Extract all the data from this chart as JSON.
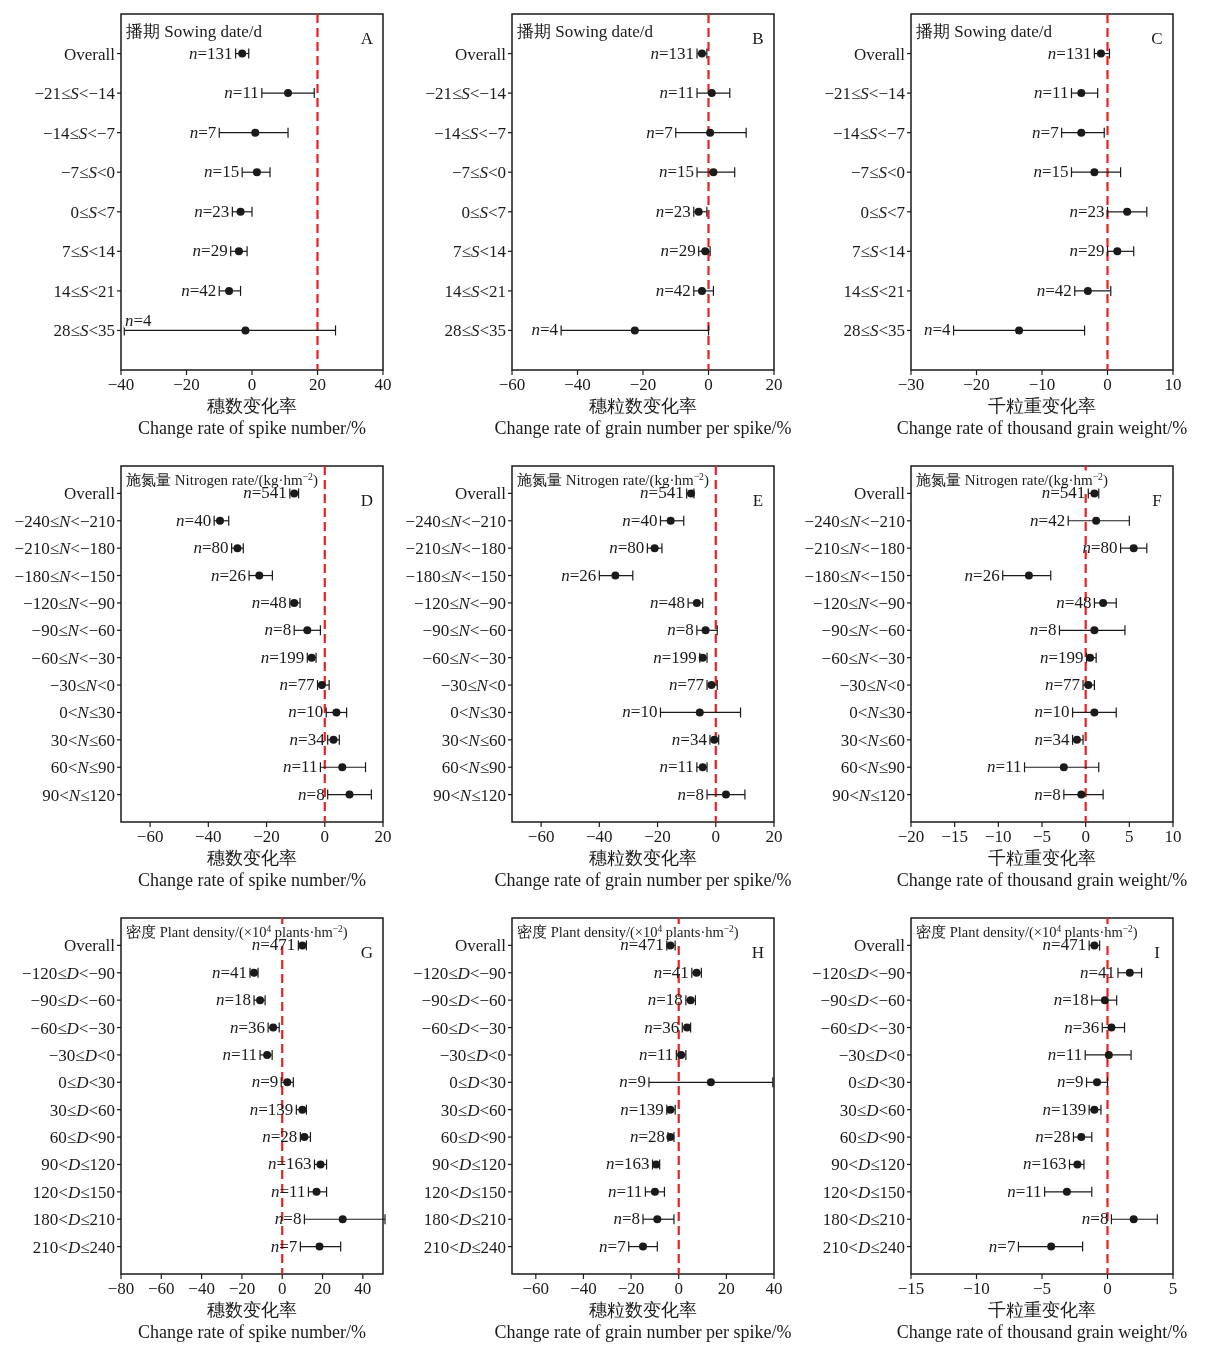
{
  "chart_data": [
    {
      "type": "scatter",
      "orientation": "horizontal",
      "marker": "circle",
      "color": "#1a1a1a",
      "title": "播期 Sowing date/d",
      "xlabel": "穗数变化率\nChange rate of spike number/%",
      "xlim": [
        -40,
        40
      ],
      "xticks": [
        -40,
        -20,
        0,
        20,
        40
      ],
      "ref_lines": [
        {
          "axis": "x",
          "value": 20,
          "color": "#e8201f",
          "line_style": "dashed"
        }
      ],
      "categories": [
        "Overall",
        "−21≤*S*<−14",
        "−14≤*S*<−7",
        "−7≤*S*<0",
        "0≤*S*<7",
        "7≤*S*<14",
        "14≤*S*<21",
        "28≤*S*<35"
      ],
      "values": [
        -3,
        11,
        1,
        1.5,
        -3.5,
        -4,
        -7,
        -2
      ],
      "errors": [
        [
          -5,
          -1
        ],
        [
          3,
          19
        ],
        [
          -10,
          11
        ],
        [
          -3,
          5.5
        ],
        [
          -6,
          0
        ],
        [
          -6.5,
          -1.5
        ],
        [
          -10,
          -3.5
        ],
        [
          -39,
          25.5
        ]
      ],
      "annotations": [
        "A",
        {
          "text": "*n*=131",
          "x": -5,
          "y": "Overall"
        },
        {
          "text": "*n*=11",
          "x": 3,
          "y": "−21≤*S*<−14"
        },
        {
          "text": "*n*=7",
          "x": -10,
          "y": "−14≤*S*<−7"
        },
        {
          "text": "*n*=15",
          "x": -3,
          "y": "−7≤*S*<0"
        },
        {
          "text": "*n*=23",
          "x": -6,
          "y": "0≤*S*<7"
        },
        {
          "text": "*n*=29",
          "x": -6.5,
          "y": "7≤*S*<14"
        },
        {
          "text": "*n*=42",
          "x": -10,
          "y": "14≤*S*<21"
        },
        {
          "text": "*n*=4",
          "x": -39,
          "y": "28≤*S*<35"
        }
      ]
    },
    {
      "type": "scatter",
      "orientation": "horizontal",
      "marker": "circle",
      "color": "#1a1a1a",
      "title": "播期 Sowing date/d",
      "xlabel": "穗粒数变化率\nChange rate of grain number per spike/%",
      "xlim": [
        -60,
        20
      ],
      "xticks": [
        -60,
        -40,
        -20,
        0,
        20
      ],
      "ref_lines": [
        {
          "axis": "x",
          "value": 0,
          "color": "#e8201f",
          "line_style": "dashed"
        }
      ],
      "categories": [
        "Overall",
        "−21≤*S*<−14",
        "−14≤*S*<−7",
        "−7≤*S*<0",
        "0≤*S*<7",
        "7≤*S*<14",
        "14≤*S*<21",
        "28≤*S*<35"
      ],
      "values": [
        -2,
        1,
        0.5,
        1.5,
        -3,
        -1,
        -2,
        -22.5
      ],
      "errors": [
        [
          -3.5,
          -0.5
        ],
        [
          -3.5,
          6.5
        ],
        [
          -10,
          11.5
        ],
        [
          -3.5,
          8
        ],
        [
          -4.5,
          -0.5
        ],
        [
          -3,
          0.5
        ],
        [
          -4.5,
          1.5
        ],
        [
          -45,
          0
        ]
      ],
      "annotations": [
        "B",
        {
          "text": "*n*=131",
          "x": -3.5,
          "y": "Overall"
        },
        {
          "text": "*n*=11",
          "x": -3.5,
          "y": "−21≤*S*<−14"
        },
        {
          "text": "*n*=7",
          "x": -10,
          "y": "−14≤*S*<−7"
        },
        {
          "text": "*n*=15",
          "x": -3.5,
          "y": "−7≤*S*<0"
        },
        {
          "text": "*n*=23",
          "x": -4.5,
          "y": "0≤*S*<7"
        },
        {
          "text": "*n*=29",
          "x": -3,
          "y": "7≤*S*<14"
        },
        {
          "text": "*n*=42",
          "x": -4.5,
          "y": "14≤*S*<21"
        },
        {
          "text": "*n*=4",
          "x": -45,
          "y": "28≤*S*<35"
        }
      ]
    },
    {
      "type": "scatter",
      "orientation": "horizontal",
      "marker": "circle",
      "color": "#1a1a1a",
      "title": "播期 Sowing date/d",
      "xlabel": "千粒重变化率\nChange rate of thousand grain weight/%",
      "xlim": [
        -30,
        10
      ],
      "xticks": [
        -30,
        -20,
        -10,
        0,
        10
      ],
      "ref_lines": [
        {
          "axis": "x",
          "value": 0,
          "color": "#e8201f",
          "line_style": "dashed"
        }
      ],
      "categories": [
        "Overall",
        "−21≤*S*<−14",
        "−14≤*S*<−7",
        "−7≤*S*<0",
        "0≤*S*<7",
        "7≤*S*<14",
        "14≤*S*<21",
        "28≤*S*<35"
      ],
      "values": [
        -1,
        -4,
        -4,
        -2,
        3,
        1.5,
        -3,
        -13.5
      ],
      "errors": [
        [
          -2,
          0.3
        ],
        [
          -5.5,
          -1.5
        ],
        [
          -7,
          -0.5
        ],
        [
          -5.5,
          2
        ],
        [
          0,
          6
        ],
        [
          0,
          4
        ],
        [
          -5,
          0.5
        ],
        [
          -23.5,
          -3.5
        ]
      ],
      "annotations": [
        "C",
        {
          "text": "*n*=131",
          "x": -2,
          "y": "Overall"
        },
        {
          "text": "*n*=11",
          "x": -5.5,
          "y": "−21≤*S*<−14"
        },
        {
          "text": "*n*=7",
          "x": -7,
          "y": "−14≤*S*<−7"
        },
        {
          "text": "*n*=15",
          "x": -5.5,
          "y": "−7≤*S*<0"
        },
        {
          "text": "*n*=23",
          "x": 0,
          "y": "0≤*S*<7"
        },
        {
          "text": "*n*=29",
          "x": 0,
          "y": "7≤*S*<14"
        },
        {
          "text": "*n*=42",
          "x": -5,
          "y": "14≤*S*<21"
        },
        {
          "text": "*n*=4",
          "x": -23.5,
          "y": "28≤*S*<35"
        }
      ]
    },
    {
      "type": "scatter",
      "orientation": "horizontal",
      "marker": "circle",
      "color": "#1a1a1a",
      "title": "施氮量 Nitrogen rate/(kg·hm$^{−2}$)",
      "xlabel": "穗数变化率\nChange rate of spike number/%",
      "xlim": [
        -70,
        20
      ],
      "xticks": [
        -60,
        -40,
        -20,
        0,
        20
      ],
      "ref_lines": [
        {
          "axis": "x",
          "value": 0,
          "color": "#e8201f",
          "line_style": "dashed"
        }
      ],
      "categories": [
        "Overall",
        "−240≤*N*<−210",
        "−210≤*N*<−180",
        "−180≤*N*<−150",
        "−120≤*N*<−90",
        "−90≤*N*<−60",
        "−60≤*N*<−30",
        "−30≤*N*<0",
        "0<*N*≤30",
        "30<*N*≤60",
        "60<*N*≤90",
        "90<*N*≤120"
      ],
      "values": [
        -10.5,
        -36,
        -30,
        -22.5,
        -10.5,
        -6,
        -4.5,
        -1,
        4,
        3,
        6,
        8.5
      ],
      "errors": [
        [
          -12,
          -9
        ],
        [
          -38,
          -33
        ],
        [
          -32,
          -28
        ],
        [
          -26,
          -18
        ],
        [
          -12,
          -8.5
        ],
        [
          -10.5,
          -1.5
        ],
        [
          -6,
          -3
        ],
        [
          -2.5,
          1.5
        ],
        [
          0.5,
          7.5
        ],
        [
          1,
          5
        ],
        [
          -1.5,
          14
        ],
        [
          1,
          16
        ]
      ],
      "annotations": [
        "D",
        {
          "text": "*n*=541",
          "x": -12,
          "y": "Overall"
        },
        {
          "text": "*n*=40",
          "x": -38,
          "y": "−240≤*N*<−210"
        },
        {
          "text": "*n*=80",
          "x": -32,
          "y": "−210≤*N*<−180"
        },
        {
          "text": "*n*=26",
          "x": -26,
          "y": "−180≤*N*<−150"
        },
        {
          "text": "*n*=48",
          "x": -12,
          "y": "−120≤*N*<−90"
        },
        {
          "text": "*n*=8",
          "x": -10.5,
          "y": "−90≤*N*<−60"
        },
        {
          "text": "*n*=199",
          "x": -6,
          "y": "−60≤*N*<−30"
        },
        {
          "text": "*n*=77",
          "x": -2.5,
          "y": "−30≤*N*<0"
        },
        {
          "text": "*n*=10",
          "x": 0.5,
          "y": "0<*N*≤30"
        },
        {
          "text": "*n*=34",
          "x": 1,
          "y": "30<*N*≤60"
        },
        {
          "text": "*n*=11",
          "x": -1.5,
          "y": "60<*N*≤90"
        },
        {
          "text": "*n*=8",
          "x": 1,
          "y": "90<*N*≤120"
        }
      ]
    },
    {
      "type": "scatter",
      "orientation": "horizontal",
      "marker": "circle",
      "color": "#1a1a1a",
      "title": "施氮量 Nitrogen rate/(kg·hm$^{−2}$)",
      "xlabel": "穗粒数变化率\nChange rate of grain number per spike/%",
      "xlim": [
        -70,
        20
      ],
      "xticks": [
        -60,
        -40,
        -20,
        0,
        20
      ],
      "ref_lines": [
        {
          "axis": "x",
          "value": 0,
          "color": "#e8201f",
          "line_style": "dashed"
        }
      ],
      "categories": [
        "Overall",
        "−240≤*N*<−210",
        "−210≤*N*<−180",
        "−180≤*N*<−150",
        "−120≤*N*<−90",
        "−90≤*N*<−60",
        "−60≤*N*<−30",
        "−30≤*N*<0",
        "0<*N*≤30",
        "30<*N*≤60",
        "60<*N*≤90",
        "90<*N*≤120"
      ],
      "values": [
        -8.5,
        -15.5,
        -21,
        -34.5,
        -6.5,
        -3.5,
        -4.5,
        -1.5,
        -5.5,
        -0.5,
        -4.5,
        3.5
      ],
      "errors": [
        [
          -10,
          -7.5
        ],
        [
          -19,
          -11
        ],
        [
          -23.5,
          -18.5
        ],
        [
          -40,
          -28.5
        ],
        [
          -9.5,
          -4.5
        ],
        [
          -6.5,
          0.5
        ],
        [
          -5.5,
          -3
        ],
        [
          -3,
          0.5
        ],
        [
          -19,
          8.5
        ],
        [
          -2,
          1
        ],
        [
          -6.5,
          -3
        ],
        [
          -3,
          10
        ]
      ],
      "annotations": [
        "E",
        {
          "text": "*n*=541",
          "x": -10,
          "y": "Overall"
        },
        {
          "text": "*n*=40",
          "x": -19,
          "y": "−240≤*N*<−210"
        },
        {
          "text": "*n*=80",
          "x": -23.5,
          "y": "−210≤*N*<−180"
        },
        {
          "text": "*n*=26",
          "x": -40,
          "y": "−180≤*N*<−150"
        },
        {
          "text": "*n*=48",
          "x": -9.5,
          "y": "−120≤*N*<−90"
        },
        {
          "text": "*n*=8",
          "x": -6.5,
          "y": "−90≤*N*<−60"
        },
        {
          "text": "*n*=199",
          "x": -5.5,
          "y": "−60≤*N*<−30"
        },
        {
          "text": "*n*=77",
          "x": -3,
          "y": "−30≤*N*<0"
        },
        {
          "text": "*n*=10",
          "x": -19,
          "y": "0<*N*≤30"
        },
        {
          "text": "*n*=34",
          "x": -2,
          "y": "30<*N*≤60"
        },
        {
          "text": "*n*=11",
          "x": -6.5,
          "y": "60<*N*≤90"
        },
        {
          "text": "*n*=8",
          "x": -3,
          "y": "90<*N*≤120"
        }
      ]
    },
    {
      "type": "scatter",
      "orientation": "horizontal",
      "marker": "circle",
      "color": "#1a1a1a",
      "title": "施氮量 Nitrogen rate/(kg·hm$^{−2}$)",
      "xlabel": "千粒重变化率\nChange rate of thousand grain weight/%",
      "xlim": [
        -20,
        10
      ],
      "xticks": [
        -20,
        -15,
        -10,
        -5,
        0,
        5,
        10
      ],
      "ref_lines": [
        {
          "axis": "x",
          "value": 0,
          "color": "#e8201f",
          "line_style": "dashed"
        }
      ],
      "categories": [
        "Overall",
        "−240≤*N*<−210",
        "−210≤*N*<−180",
        "−180≤*N*<−150",
        "−120≤*N*<−90",
        "−90≤*N*<−60",
        "−60≤*N*<−30",
        "−30≤*N*<0",
        "0<*N*≤30",
        "30<*N*≤60",
        "60<*N*≤90",
        "90<*N*≤120"
      ],
      "values": [
        1,
        1.2,
        5.5,
        -6.5,
        2,
        1,
        0.5,
        0.3,
        1,
        -1,
        -2.5,
        -0.5
      ],
      "errors": [
        [
          0.3,
          1.5
        ],
        [
          -2,
          5
        ],
        [
          4,
          7
        ],
        [
          -9.5,
          -4
        ],
        [
          1,
          3.5
        ],
        [
          -3,
          4.5
        ],
        [
          0.1,
          1.2
        ],
        [
          -0.3,
          1
        ],
        [
          -1.5,
          3.5
        ],
        [
          -1.5,
          -0.3
        ],
        [
          -7,
          1.5
        ],
        [
          -2.5,
          2
        ]
      ],
      "annotations": [
        "F",
        {
          "text": "*n*=541",
          "x": 0.3,
          "y": "Overall"
        },
        {
          "text": "*n*=42",
          "x": -2,
          "y": "−240≤*N*<−210"
        },
        {
          "text": "*n*=80",
          "x": 4,
          "y": "−210≤*N*<−180"
        },
        {
          "text": "*n*=26",
          "x": -9.5,
          "y": "−180≤*N*<−150"
        },
        {
          "text": "*n*=48",
          "x": 1,
          "y": "−120≤*N*<−90"
        },
        {
          "text": "*n*=8",
          "x": -3,
          "y": "−90≤*N*<−60"
        },
        {
          "text": "*n*=199",
          "x": 0.1,
          "y": "−60≤*N*<−30"
        },
        {
          "text": "*n*=77",
          "x": -0.3,
          "y": "−30≤*N*<0"
        },
        {
          "text": "*n*=10",
          "x": -1.5,
          "y": "0<*N*≤30"
        },
        {
          "text": "*n*=34",
          "x": -1.5,
          "y": "30<*N*≤60"
        },
        {
          "text": "*n*=11",
          "x": -7,
          "y": "60<*N*≤90"
        },
        {
          "text": "*n*=8",
          "x": -2.5,
          "y": "90<*N*≤120"
        }
      ]
    },
    {
      "type": "scatter",
      "orientation": "horizontal",
      "marker": "circle",
      "color": "#1a1a1a",
      "title": "密度 Plant density/(×10$^{4}$ plants·hm$^{−2}$)",
      "xlabel": "穗数变化率\nChange rate of spike number/%",
      "xlim": [
        -80,
        50
      ],
      "xticks": [
        -80,
        -60,
        -40,
        -20,
        0,
        20,
        40
      ],
      "ref_lines": [
        {
          "axis": "x",
          "value": 0,
          "color": "#e8201f",
          "line_style": "dashed"
        }
      ],
      "categories": [
        "Overall",
        "−120≤*D*<−90",
        "−90≤*D*<−60",
        "−60≤*D*<−30",
        "−30≤*D*<0",
        "0≤*D*<30",
        "30≤*D*<60",
        "60≤*D*<90",
        "90<*D*≤120",
        "120<*D*≤150",
        "180<*D*≤210",
        "210<*D*≤240"
      ],
      "values": [
        10,
        -14,
        -11,
        -4.5,
        -7.5,
        2.5,
        10,
        11,
        19,
        17,
        30,
        18.5
      ],
      "errors": [
        [
          8,
          12
        ],
        [
          -16,
          -12
        ],
        [
          -14,
          -8.5
        ],
        [
          -7,
          -1.5
        ],
        [
          -11,
          -5
        ],
        [
          -0.5,
          5.5
        ],
        [
          7,
          12
        ],
        [
          9,
          14
        ],
        [
          16,
          22
        ],
        [
          13,
          22
        ],
        [
          11,
          51
        ],
        [
          9,
          29
        ]
      ],
      "annotations": [
        "G",
        {
          "text": "*n*=471",
          "x": 8,
          "y": "Overall"
        },
        {
          "text": "*n*=41",
          "x": -16,
          "y": "−120≤*D*<−90"
        },
        {
          "text": "*n*=18",
          "x": -14,
          "y": "−90≤*D*<−60"
        },
        {
          "text": "*n*=36",
          "x": -7,
          "y": "−60≤*D*<−30"
        },
        {
          "text": "*n*=11",
          "x": -11,
          "y": "−30≤*D*<0"
        },
        {
          "text": "*n*=9",
          "x": -0.5,
          "y": "0≤*D*<30"
        },
        {
          "text": "*n*=139",
          "x": 7,
          "y": "30≤*D*<60"
        },
        {
          "text": "*n*=28",
          "x": 9,
          "y": "60≤*D*<90"
        },
        {
          "text": "*n*=163",
          "x": 16,
          "y": "90<*D*≤120"
        },
        {
          "text": "*n*=11",
          "x": 13,
          "y": "120<*D*≤150"
        },
        {
          "text": "*n*=8",
          "x": 11,
          "y": "180<*D*≤210"
        },
        {
          "text": "*n*=7",
          "x": 9,
          "y": "210<*D*≤240"
        }
      ]
    },
    {
      "type": "scatter",
      "orientation": "horizontal",
      "marker": "circle",
      "color": "#1a1a1a",
      "title": "密度 Plant density/(×10$^{4}$ plants·hm$^{−2}$)",
      "xlabel": "穗粒数变化率\nChange rate of grain number per spike/%",
      "xlim": [
        -70,
        40
      ],
      "xticks": [
        -60,
        -40,
        -20,
        0,
        20,
        40
      ],
      "ref_lines": [
        {
          "axis": "x",
          "value": 0,
          "color": "#e8201f",
          "line_style": "dashed"
        }
      ],
      "categories": [
        "Overall",
        "−120≤*D*<−90",
        "−90≤*D*<−60",
        "−60≤*D*<−30",
        "−30≤*D*<0",
        "0≤*D*<30",
        "30≤*D*<60",
        "60≤*D*<90",
        "90<*D*≤120",
        "120<*D*≤150",
        "180<*D*≤210",
        "210<*D*≤240"
      ],
      "values": [
        -3.5,
        7.5,
        5,
        3.5,
        1,
        13.5,
        -3.5,
        -3.5,
        -9.5,
        -10,
        -9,
        -15
      ],
      "errors": [
        [
          -5,
          -1.5
        ],
        [
          5.5,
          9.5
        ],
        [
          3,
          7
        ],
        [
          1.5,
          5
        ],
        [
          -1,
          3
        ],
        [
          -12.5,
          39.5
        ],
        [
          -5,
          -1.5
        ],
        [
          -4.5,
          -2
        ],
        [
          -11,
          -8
        ],
        [
          -14,
          -6
        ],
        [
          -15,
          -2
        ],
        [
          -21,
          -9
        ]
      ],
      "annotations": [
        "H",
        {
          "text": "*n*=471",
          "x": -5,
          "y": "Overall"
        },
        {
          "text": "*n*=41",
          "x": 5.5,
          "y": "−120≤*D*<−90"
        },
        {
          "text": "*n*=18",
          "x": 3,
          "y": "−90≤*D*<−60"
        },
        {
          "text": "*n*=36",
          "x": 1.5,
          "y": "−60≤*D*<−30"
        },
        {
          "text": "*n*=11",
          "x": -1,
          "y": "−30≤*D*<0"
        },
        {
          "text": "*n*=9",
          "x": -12.5,
          "y": "0≤*D*<30"
        },
        {
          "text": "*n*=139",
          "x": -5,
          "y": "30≤*D*<60"
        },
        {
          "text": "*n*=28",
          "x": -4.5,
          "y": "60≤*D*<90"
        },
        {
          "text": "*n*=163",
          "x": -11,
          "y": "90<*D*≤120"
        },
        {
          "text": "*n*=11",
          "x": -14,
          "y": "120<*D*≤150"
        },
        {
          "text": "*n*=8",
          "x": -15,
          "y": "180<*D*≤210"
        },
        {
          "text": "*n*=7",
          "x": -21,
          "y": "210<*D*≤240"
        }
      ]
    },
    {
      "type": "scatter",
      "orientation": "horizontal",
      "marker": "circle",
      "color": "#1a1a1a",
      "title": "密度 Plant density/(×10$^{4}$ plants·hm$^{−2}$)",
      "xlabel": "千粒重变化率\nChange rate of thousand grain weight/%",
      "xlim": [
        -15,
        5
      ],
      "xticks": [
        -15,
        -10,
        -5,
        0,
        5
      ],
      "ref_lines": [
        {
          "axis": "x",
          "value": 0,
          "color": "#e8201f",
          "line_style": "dashed"
        }
      ],
      "categories": [
        "Overall",
        "−120≤*D*<−90",
        "−90≤*D*<−60",
        "−60≤*D*<−30",
        "−30≤*D*<0",
        "0≤*D*<30",
        "30≤*D*<60",
        "60≤*D*<90",
        "90<*D*≤120",
        "120<*D*≤150",
        "180<*D*≤210",
        "210<*D*≤240"
      ],
      "values": [
        -1,
        1.7,
        -0.2,
        0.3,
        0.1,
        -0.8,
        -1,
        -2,
        -2.3,
        -3.1,
        2,
        -4.3
      ],
      "errors": [
        [
          -1.4,
          -0.6
        ],
        [
          0.8,
          2.6
        ],
        [
          -1.2,
          0.7
        ],
        [
          -0.4,
          1.3
        ],
        [
          -1.7,
          1.8
        ],
        [
          -1.6,
          0
        ],
        [
          -1.4,
          -0.5
        ],
        [
          -2.6,
          -1.2
        ],
        [
          -2.9,
          -1.8
        ],
        [
          -4.8,
          -1.2
        ],
        [
          0.3,
          3.8
        ],
        [
          -6.8,
          -1.9
        ]
      ],
      "annotations": [
        "I",
        {
          "text": "*n*=471",
          "x": -1.4,
          "y": "Overall"
        },
        {
          "text": "*n*=41",
          "x": 0.8,
          "y": "−120≤*D*<−90"
        },
        {
          "text": "*n*=18",
          "x": -1.2,
          "y": "−90≤*D*<−60"
        },
        {
          "text": "*n*=36",
          "x": -0.4,
          "y": "−60≤*D*<−30"
        },
        {
          "text": "*n*=11",
          "x": -1.7,
          "y": "−30≤*D*<0"
        },
        {
          "text": "*n*=9",
          "x": -1.6,
          "y": "0≤*D*<30"
        },
        {
          "text": "*n*=139",
          "x": -1.4,
          "y": "30≤*D*<60"
        },
        {
          "text": "*n*=28",
          "x": -2.6,
          "y": "60≤*D*<90"
        },
        {
          "text": "*n*=163",
          "x": -2.9,
          "y": "90<*D*≤120"
        },
        {
          "text": "*n*=11",
          "x": -4.8,
          "y": "120<*D*≤150"
        },
        {
          "text": "*n*=8",
          "x": 0.3,
          "y": "180<*D*≤210"
        },
        {
          "text": "*n*=7",
          "x": -6.8,
          "y": "210<*D*≤240"
        }
      ]
    }
  ]
}
